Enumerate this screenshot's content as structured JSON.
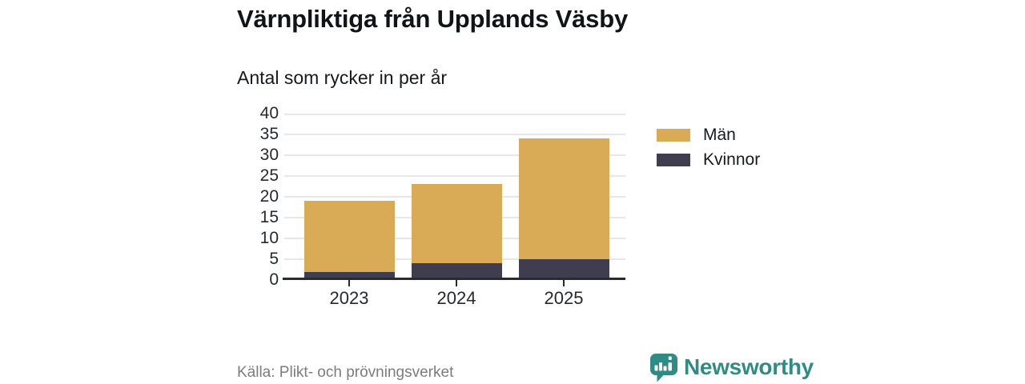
{
  "header": {
    "title": "Värnpliktiga från Upplands Väsby",
    "subtitle": "Antal som rycker in per år"
  },
  "chart_data": {
    "type": "bar",
    "stacked": true,
    "title": "Värnpliktiga från Upplands Väsby",
    "subtitle": "Antal som rycker in per år",
    "categories": [
      "2023",
      "2024",
      "2025"
    ],
    "series": [
      {
        "key": "man",
        "name": "Män",
        "color": "#d9ab56",
        "values": [
          17,
          19,
          29
        ]
      },
      {
        "key": "kvinnor",
        "name": "Kvinnor",
        "color": "#3f3d4e",
        "values": [
          2,
          4,
          5
        ]
      }
    ],
    "stack_order_bottom_to_top": [
      "kvinnor",
      "man"
    ],
    "totals": [
      19,
      23,
      34
    ],
    "xlabel": "",
    "ylabel": "",
    "ylim": [
      0,
      40
    ],
    "ytick_step": 5,
    "yticks": [
      0,
      5,
      10,
      15,
      20,
      25,
      30,
      35,
      40
    ],
    "grid": true,
    "legend_position": "right"
  },
  "footer": {
    "source": "Källa: Plikt- och prövningsverket",
    "brand": "Newsworthy"
  },
  "colors": {
    "man": "#d9ab56",
    "kvinnor": "#3f3d4e",
    "axis": "#262b33",
    "gridline": "#e8e7e4",
    "text_dark": "#14171a",
    "text_muted": "#7c7c7c",
    "brand_teal": "#2f8c85",
    "background": "#ffffff"
  }
}
